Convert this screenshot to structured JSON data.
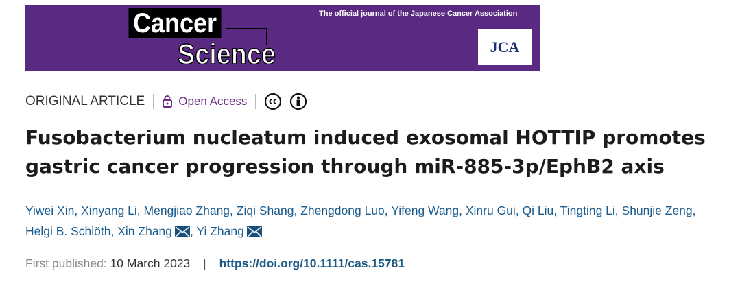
{
  "header": {
    "journal_word1": "Cancer",
    "journal_word2": "Science",
    "tagline": "The official journal of the Japanese Cancer Association",
    "logo": "JCA"
  },
  "article_type": "ORIGINAL ARTICLE",
  "access": "Open Access",
  "title": "Fusobacterium nucleatum induced exosomal HOTTIP promotes gastric cancer progression through miR-885-3p/EphB2 axis",
  "authors": [
    {
      "name": "Yiwei Xin",
      "corresponding": false
    },
    {
      "name": "Xinyang Li",
      "corresponding": false
    },
    {
      "name": "Mengjiao Zhang",
      "corresponding": false
    },
    {
      "name": "Ziqi Shang",
      "corresponding": false
    },
    {
      "name": "Zhengdong Luo",
      "corresponding": false
    },
    {
      "name": "Yifeng Wang",
      "corresponding": false
    },
    {
      "name": "Xinru Gui",
      "corresponding": false
    },
    {
      "name": "Qi Liu",
      "corresponding": false
    },
    {
      "name": "Tingting Li",
      "corresponding": false
    },
    {
      "name": "Shunjie Zeng",
      "corresponding": false
    },
    {
      "name": "Helgi B. Schiöth",
      "corresponding": false
    },
    {
      "name": "Xin Zhang",
      "corresponding": true
    },
    {
      "name": "Yi Zhang",
      "corresponding": true
    }
  ],
  "published": {
    "label": "First published:",
    "date": "10 March 2023",
    "doi": "https://doi.org/10.1111/cas.15781"
  }
}
